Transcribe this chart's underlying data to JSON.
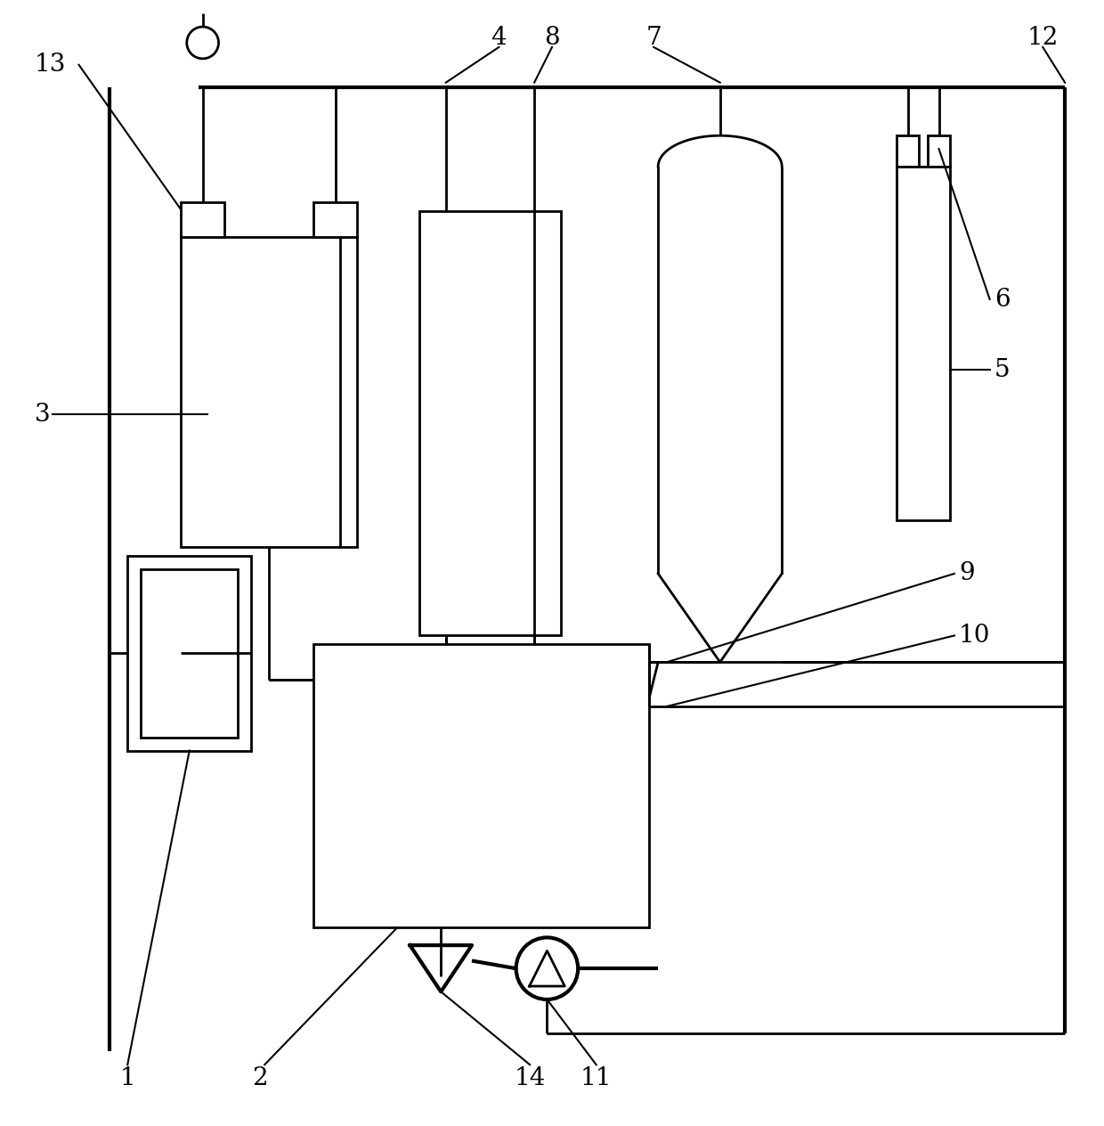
{
  "bg_color": "#ffffff",
  "line_color": "#000000",
  "lw": 2.0,
  "fig_width": 12.4,
  "fig_height": 12.64,
  "label_fs": 20
}
